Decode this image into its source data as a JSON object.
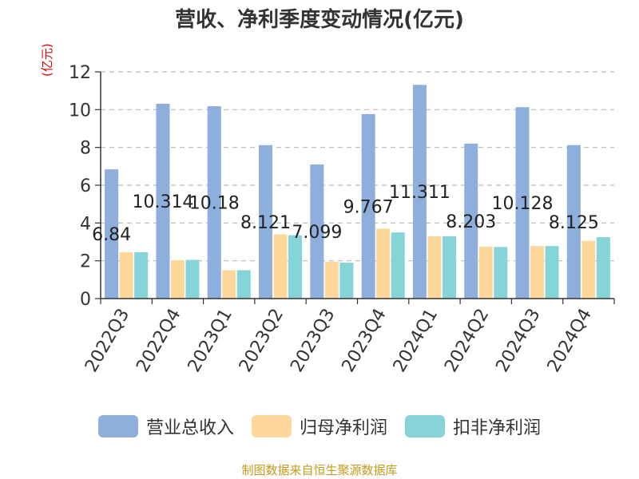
{
  "chart_data": {
    "type": "bar",
    "title": "营收、净利季度变动情况(亿元)",
    "ylabel": "(亿元)",
    "ylim": [
      0,
      12
    ],
    "yticks": [
      0,
      2,
      4,
      6,
      8,
      10,
      12
    ],
    "grid": true,
    "legend_position": "bottom",
    "categories": [
      "2022Q3",
      "2022Q4",
      "2023Q1",
      "2023Q2",
      "2023Q3",
      "2023Q4",
      "2024Q1",
      "2024Q2",
      "2024Q3",
      "2024Q4"
    ],
    "series": [
      {
        "name": "营业总收入",
        "color": "#8eaedc",
        "values": [
          6.84,
          10.314,
          10.18,
          8.121,
          7.099,
          9.767,
          11.311,
          8.203,
          10.128,
          8.125
        ],
        "labels": [
          "6.84",
          "10.314",
          "10.18",
          "8.121",
          "7.099",
          "9.767",
          "11.311",
          "8.203",
          "10.128",
          "8.125"
        ]
      },
      {
        "name": "归母净利润",
        "color": "#fdd89a",
        "values": [
          2.45,
          2.03,
          1.5,
          3.4,
          1.95,
          3.7,
          3.3,
          2.75,
          2.78,
          3.05
        ]
      },
      {
        "name": "扣非净利润",
        "color": "#87d4d8",
        "values": [
          2.45,
          2.05,
          1.5,
          3.35,
          1.9,
          3.5,
          3.3,
          2.73,
          2.78,
          3.25
        ]
      }
    ],
    "source": "制图数据来自恒生聚源数据库"
  }
}
